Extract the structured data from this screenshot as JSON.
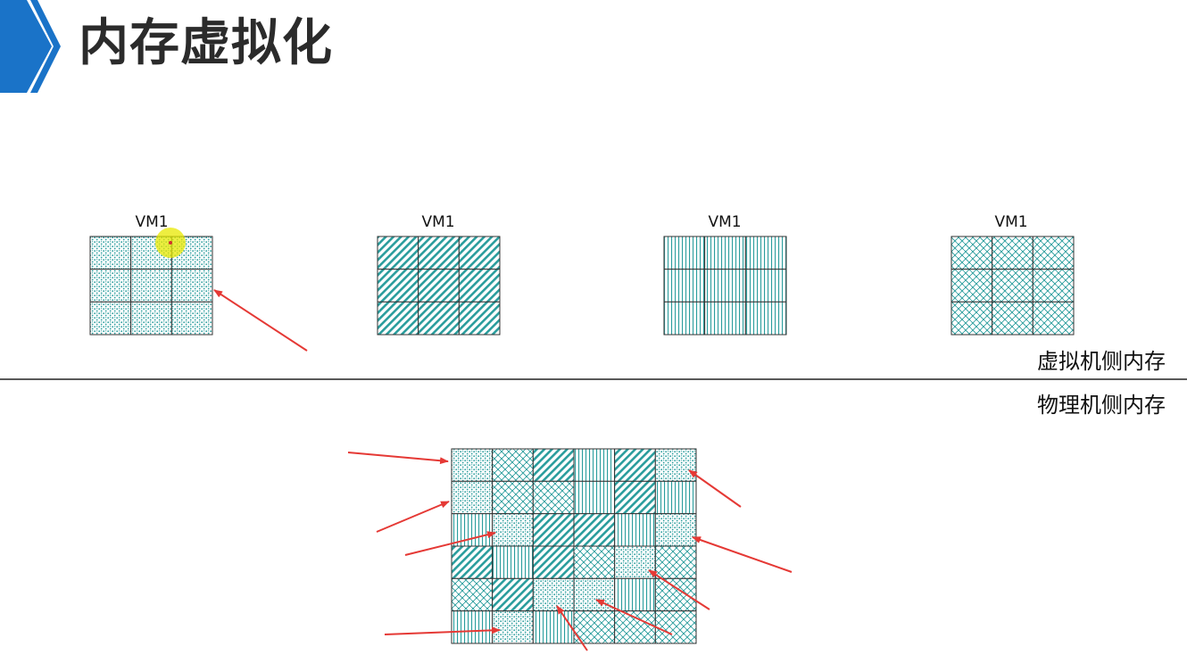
{
  "title": "内存虚拟化",
  "vm_labels": [
    "VM1",
    "VM1",
    "VM1",
    "VM1"
  ],
  "virtual_side_label": "虚拟机侧内存",
  "physical_side_label": "物理机侧内存",
  "accent_color": "#1a73c8",
  "arrow_color": "#e53935",
  "cell_color": "#2a9d9d",
  "patterns": [
    "dots",
    "diagonal",
    "vertical",
    "weave"
  ],
  "vm_grid": {
    "rows": 3,
    "cols": 3
  },
  "physical_grid": {
    "rows": 6,
    "cols": 6,
    "cells": [
      [
        "dots",
        "weave",
        "diagonal",
        "vertical",
        "diagonal",
        "dots"
      ],
      [
        "dots",
        "weave",
        "weave",
        "vertical",
        "diagonal",
        "vertical"
      ],
      [
        "vertical",
        "dots",
        "diagonal",
        "diagonal",
        "vertical",
        "dots"
      ],
      [
        "diagonal",
        "vertical",
        "diagonal",
        "weave",
        "dots",
        "weave"
      ],
      [
        "weave",
        "diagonal",
        "dots",
        "dots",
        "vertical",
        "weave"
      ],
      [
        "vertical",
        "dots",
        "vertical",
        "weave",
        "weave",
        "weave"
      ]
    ]
  }
}
